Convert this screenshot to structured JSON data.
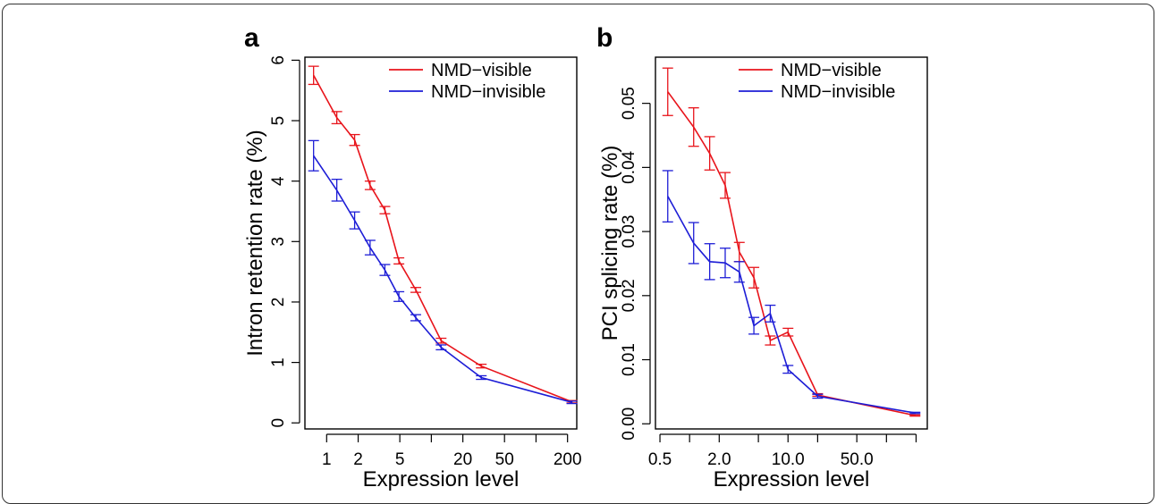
{
  "colors": {
    "visible": "#e8141b",
    "invisible": "#1d1dd6",
    "axis": "#000000"
  },
  "chart_data": [
    {
      "type": "line",
      "panel_label": "a",
      "xlabel": "Expression level",
      "ylabel": "Intron retention rate (%)",
      "x_scale": "log",
      "xlim": [
        0.62,
        245
      ],
      "ylim": [
        -0.1,
        6.05
      ],
      "x_ticks": [
        1,
        2,
        5,
        10,
        20,
        50,
        100,
        200
      ],
      "x_tick_labels": [
        "1",
        "2",
        "5",
        "",
        "20",
        "50",
        "",
        "200"
      ],
      "y_ticks": [
        0,
        1,
        2,
        3,
        4,
        5,
        6
      ],
      "y_tick_labels": [
        "0",
        "1",
        "2",
        "3",
        "4",
        "5",
        "6"
      ],
      "legend_position": "top-right",
      "series": [
        {
          "name": "NMD−visible",
          "color": "#e8141b",
          "x": [
            0.75,
            1.25,
            1.85,
            2.6,
            3.6,
            4.9,
            7.1,
            12.4,
            30,
            220
          ],
          "y": [
            5.75,
            5.05,
            4.68,
            3.93,
            3.52,
            2.68,
            2.2,
            1.36,
            0.94,
            0.35
          ],
          "err": [
            0.15,
            0.1,
            0.09,
            0.07,
            0.06,
            0.05,
            0.04,
            0.04,
            0.03,
            0.02
          ]
        },
        {
          "name": "NMD−invisible",
          "color": "#1d1dd6",
          "x": [
            0.75,
            1.25,
            1.85,
            2.6,
            3.6,
            4.9,
            7.1,
            12.4,
            30,
            220
          ],
          "y": [
            4.42,
            3.85,
            3.35,
            2.9,
            2.53,
            2.09,
            1.74,
            1.25,
            0.75,
            0.34
          ],
          "err": [
            0.25,
            0.18,
            0.14,
            0.12,
            0.09,
            0.08,
            0.05,
            0.04,
            0.03,
            0.02
          ]
        }
      ]
    },
    {
      "type": "line",
      "panel_label": "b",
      "xlabel": "Expression level",
      "ylabel": "PCI splicing rate (%)",
      "x_scale": "log",
      "xlim": [
        0.45,
        260
      ],
      "ylim": [
        -0.0008,
        0.0572
      ],
      "x_ticks": [
        0.5,
        1,
        2,
        5,
        10,
        20,
        50,
        100,
        200
      ],
      "x_tick_labels": [
        "0.5",
        "",
        "2.0",
        "",
        "10.0",
        "",
        "50.0",
        "",
        ""
      ],
      "y_ticks": [
        0.0,
        0.01,
        0.02,
        0.03,
        0.04,
        0.05
      ],
      "y_tick_labels": [
        "0.00",
        "0.01",
        "0.02",
        "0.03",
        "0.04",
        "0.05"
      ],
      "legend_position": "top-right",
      "series": [
        {
          "name": "NMD−visible",
          "color": "#e8141b",
          "x": [
            0.6,
            1.1,
            1.6,
            2.3,
            3.2,
            4.5,
            6.6,
            10,
            20,
            195
          ],
          "y": [
            0.0518,
            0.0463,
            0.0422,
            0.0372,
            0.0268,
            0.0228,
            0.013,
            0.0143,
            0.0045,
            0.0013
          ],
          "err": [
            0.0037,
            0.003,
            0.0026,
            0.002,
            0.0015,
            0.0016,
            0.0007,
            0.0006,
            0.0002,
            0.0001
          ]
        },
        {
          "name": "NMD−invisible",
          "color": "#1d1dd6",
          "x": [
            0.6,
            1.1,
            1.6,
            2.3,
            3.2,
            4.5,
            6.6,
            10,
            20,
            195
          ],
          "y": [
            0.0355,
            0.0282,
            0.0253,
            0.0251,
            0.0237,
            0.0153,
            0.0172,
            0.0085,
            0.0043,
            0.0017
          ],
          "err": [
            0.004,
            0.0032,
            0.0028,
            0.0023,
            0.0016,
            0.0013,
            0.0013,
            0.0006,
            0.0003,
            0.0001
          ]
        }
      ]
    }
  ]
}
